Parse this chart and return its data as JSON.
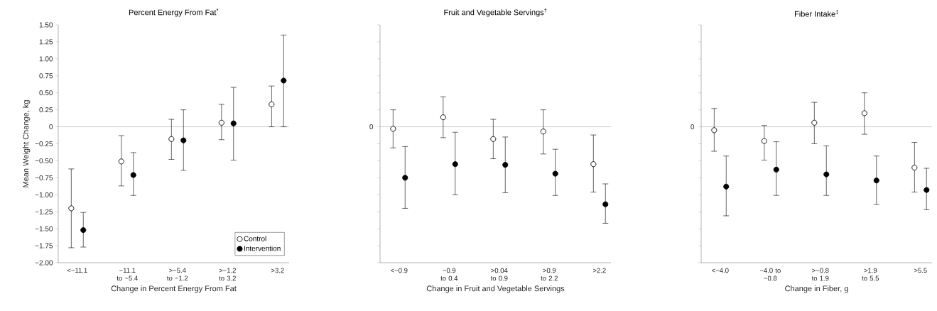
{
  "chart_data": [
    {
      "type": "scatter",
      "title": "Percent Energy From Fat$^{*}$",
      "xlabel": "Change in Percent Energy From Fat",
      "ylabel": "Mean Weight Change, kg",
      "categories": [
        "<−11.1",
        "−11.1 to −5.4",
        ">−5.4 to −1.2",
        ">−1.2 to 3.2",
        ">3.2"
      ],
      "series": [
        {
          "name": "Control",
          "color": "#ffffff",
          "marker": "circle",
          "values": [
            -1.2,
            -0.51,
            -0.18,
            0.06,
            0.33
          ],
          "errors": [
            [
              -1.78,
              -0.62
            ],
            [
              -0.87,
              -0.13
            ],
            [
              -0.48,
              0.11
            ],
            [
              -0.19,
              0.33
            ],
            [
              0.0,
              0.6
            ]
          ]
        },
        {
          "name": "Intervention",
          "color": "#000000",
          "marker": "circle",
          "values": [
            -1.52,
            -0.71,
            -0.2,
            0.05,
            0.68
          ],
          "errors": [
            [
              -1.77,
              -1.26
            ],
            [
              -1.01,
              -0.38
            ],
            [
              -0.64,
              0.25
            ],
            [
              -0.49,
              0.58
            ],
            [
              0.0,
              1.35
            ]
          ]
        }
      ],
      "ylim": [
        -2,
        1.5
      ],
      "yticks": [
        {
          "value": 1.5,
          "label": "1.50"
        },
        {
          "value": 1.25,
          "label": "1.25"
        },
        {
          "value": 1,
          "label": "1.00"
        },
        {
          "value": 0.75,
          "label": "0.75"
        },
        {
          "value": 0.5,
          "label": "0.50"
        },
        {
          "value": 0.25,
          "label": "0.25"
        },
        0,
        {
          "value": -0.25,
          "label": "−0.25"
        },
        {
          "value": -0.5,
          "label": "−0.50"
        },
        {
          "value": -0.75,
          "label": "−0.75"
        },
        {
          "value": -1,
          "label": "−1.00"
        },
        {
          "value": -1.25,
          "label": "−1.25"
        },
        {
          "value": -1.5,
          "label": "−1.50"
        },
        {
          "value": -1.75,
          "label": "−1.75"
        },
        {
          "value": -2,
          "label": "−2.00"
        }
      ],
      "ref_lines": [
        {
          "axis": "y",
          "value": 0,
          "color": "#808080"
        }
      ],
      "legend": "bottom right"
    },
    {
      "type": "scatter",
      "title": "Fruit and Vegetable Servings$^{†}$",
      "xlabel": "Change in Fruit and Vegetable Servings",
      "categories": [
        "<−0.9",
        "−0.9 to 0.4",
        ">0.04 to 0.9",
        ">0.9 to 2.2",
        ">2.2"
      ],
      "series": [
        {
          "color": "#ffffff",
          "marker": "circle",
          "values": [
            -0.03,
            0.14,
            -0.18,
            -0.07,
            -0.55
          ],
          "errors": [
            [
              -0.31,
              0.25
            ],
            [
              -0.16,
              0.44
            ],
            [
              -0.47,
              0.11
            ],
            [
              -0.4,
              0.25
            ],
            [
              -0.96,
              -0.12
            ]
          ]
        },
        {
          "color": "#000000",
          "marker": "circle",
          "values": [
            -0.75,
            -0.55,
            -0.56,
            -0.69,
            -1.14
          ],
          "errors": [
            [
              -1.2,
              -0.29
            ],
            [
              -1.0,
              -0.08
            ],
            [
              -0.97,
              -0.15
            ],
            [
              -1.01,
              -0.33
            ],
            [
              -1.42,
              -0.84
            ]
          ]
        }
      ],
      "ylim": [
        -2,
        1.5
      ],
      "yticks": [
        1.5,
        1.25,
        1,
        0.75,
        0.5,
        0.25,
        0,
        -0.25,
        -0.5,
        -0.75,
        -1,
        -1.25,
        -1.5,
        -1.75,
        -2
      ],
      "tick_labels": "x",
      "ref_lines": [
        {
          "axis": "y",
          "value": 0,
          "label": "0",
          "color": "#808080"
        }
      ]
    },
    {
      "type": "scatter",
      "title": "Fiber Intake$^{‡}$",
      "xlabel": "Change in Fiber, g",
      "categories": [
        "<−4.0",
        "−4.0 to −0.8",
        ">−0.8 to 1.9",
        ">1.9 to 5.5",
        ">5.5"
      ],
      "series": [
        {
          "color": "#ffffff",
          "marker": "circle",
          "values": [
            -0.05,
            -0.21,
            0.06,
            0.2,
            -0.6
          ],
          "errors": [
            [
              -0.36,
              0.27
            ],
            [
              -0.49,
              0.02
            ],
            [
              -0.25,
              0.36
            ],
            [
              -0.11,
              0.5
            ],
            [
              -0.96,
              -0.23
            ]
          ]
        },
        {
          "color": "#000000",
          "marker": "circle",
          "values": [
            -0.88,
            -0.63,
            -0.7,
            -0.79,
            -0.93
          ],
          "errors": [
            [
              -1.31,
              -0.43
            ],
            [
              -1.01,
              -0.22
            ],
            [
              -1.01,
              -0.28
            ],
            [
              -1.14,
              -0.43
            ],
            [
              -1.22,
              -0.61
            ]
          ]
        }
      ],
      "ylim": [
        -2,
        1.5
      ],
      "yticks": [
        1.5,
        1.25,
        1,
        0.75,
        0.5,
        0.25,
        0,
        -0.25,
        -0.5,
        -0.75,
        -1,
        -1.25,
        -1.5,
        -1.75,
        -2
      ],
      "tick_labels": "x",
      "ref_lines": [
        {
          "axis": "y",
          "value": 0,
          "label": "0",
          "color": "#808080"
        }
      ]
    }
  ]
}
